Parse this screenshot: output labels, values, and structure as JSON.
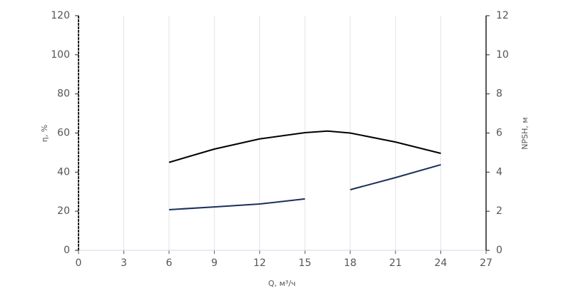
{
  "chart_data": {
    "type": "line",
    "xlabel": "Q, м³/ч",
    "ylabel": "η, %",
    "y2label": "NPSH, м",
    "x": [
      6,
      9,
      12,
      15,
      16.5,
      18,
      21,
      24
    ],
    "series": [
      {
        "name": "η",
        "color": "#000000",
        "values": [
          45,
          51.8,
          57,
          60.2,
          61,
          60,
          55.4,
          49.6
        ]
      },
      {
        "name": "NPSH",
        "color": "#1b2f5c",
        "axis": "y2",
        "values": [
          2.08,
          2.22,
          2.37,
          2.63,
          null,
          3.1,
          3.72,
          4.38
        ]
      }
    ],
    "xlim": [
      0,
      27
    ],
    "xticks": [
      0,
      3,
      6,
      9,
      12,
      15,
      18,
      21,
      24,
      27
    ],
    "ylim": [
      0,
      120
    ],
    "yticks": [
      0,
      20,
      40,
      60,
      80,
      100,
      120
    ],
    "y2lim": [
      0,
      12
    ],
    "y2ticks": [
      0,
      2,
      4,
      6,
      8,
      10,
      12
    ],
    "grid": true
  }
}
